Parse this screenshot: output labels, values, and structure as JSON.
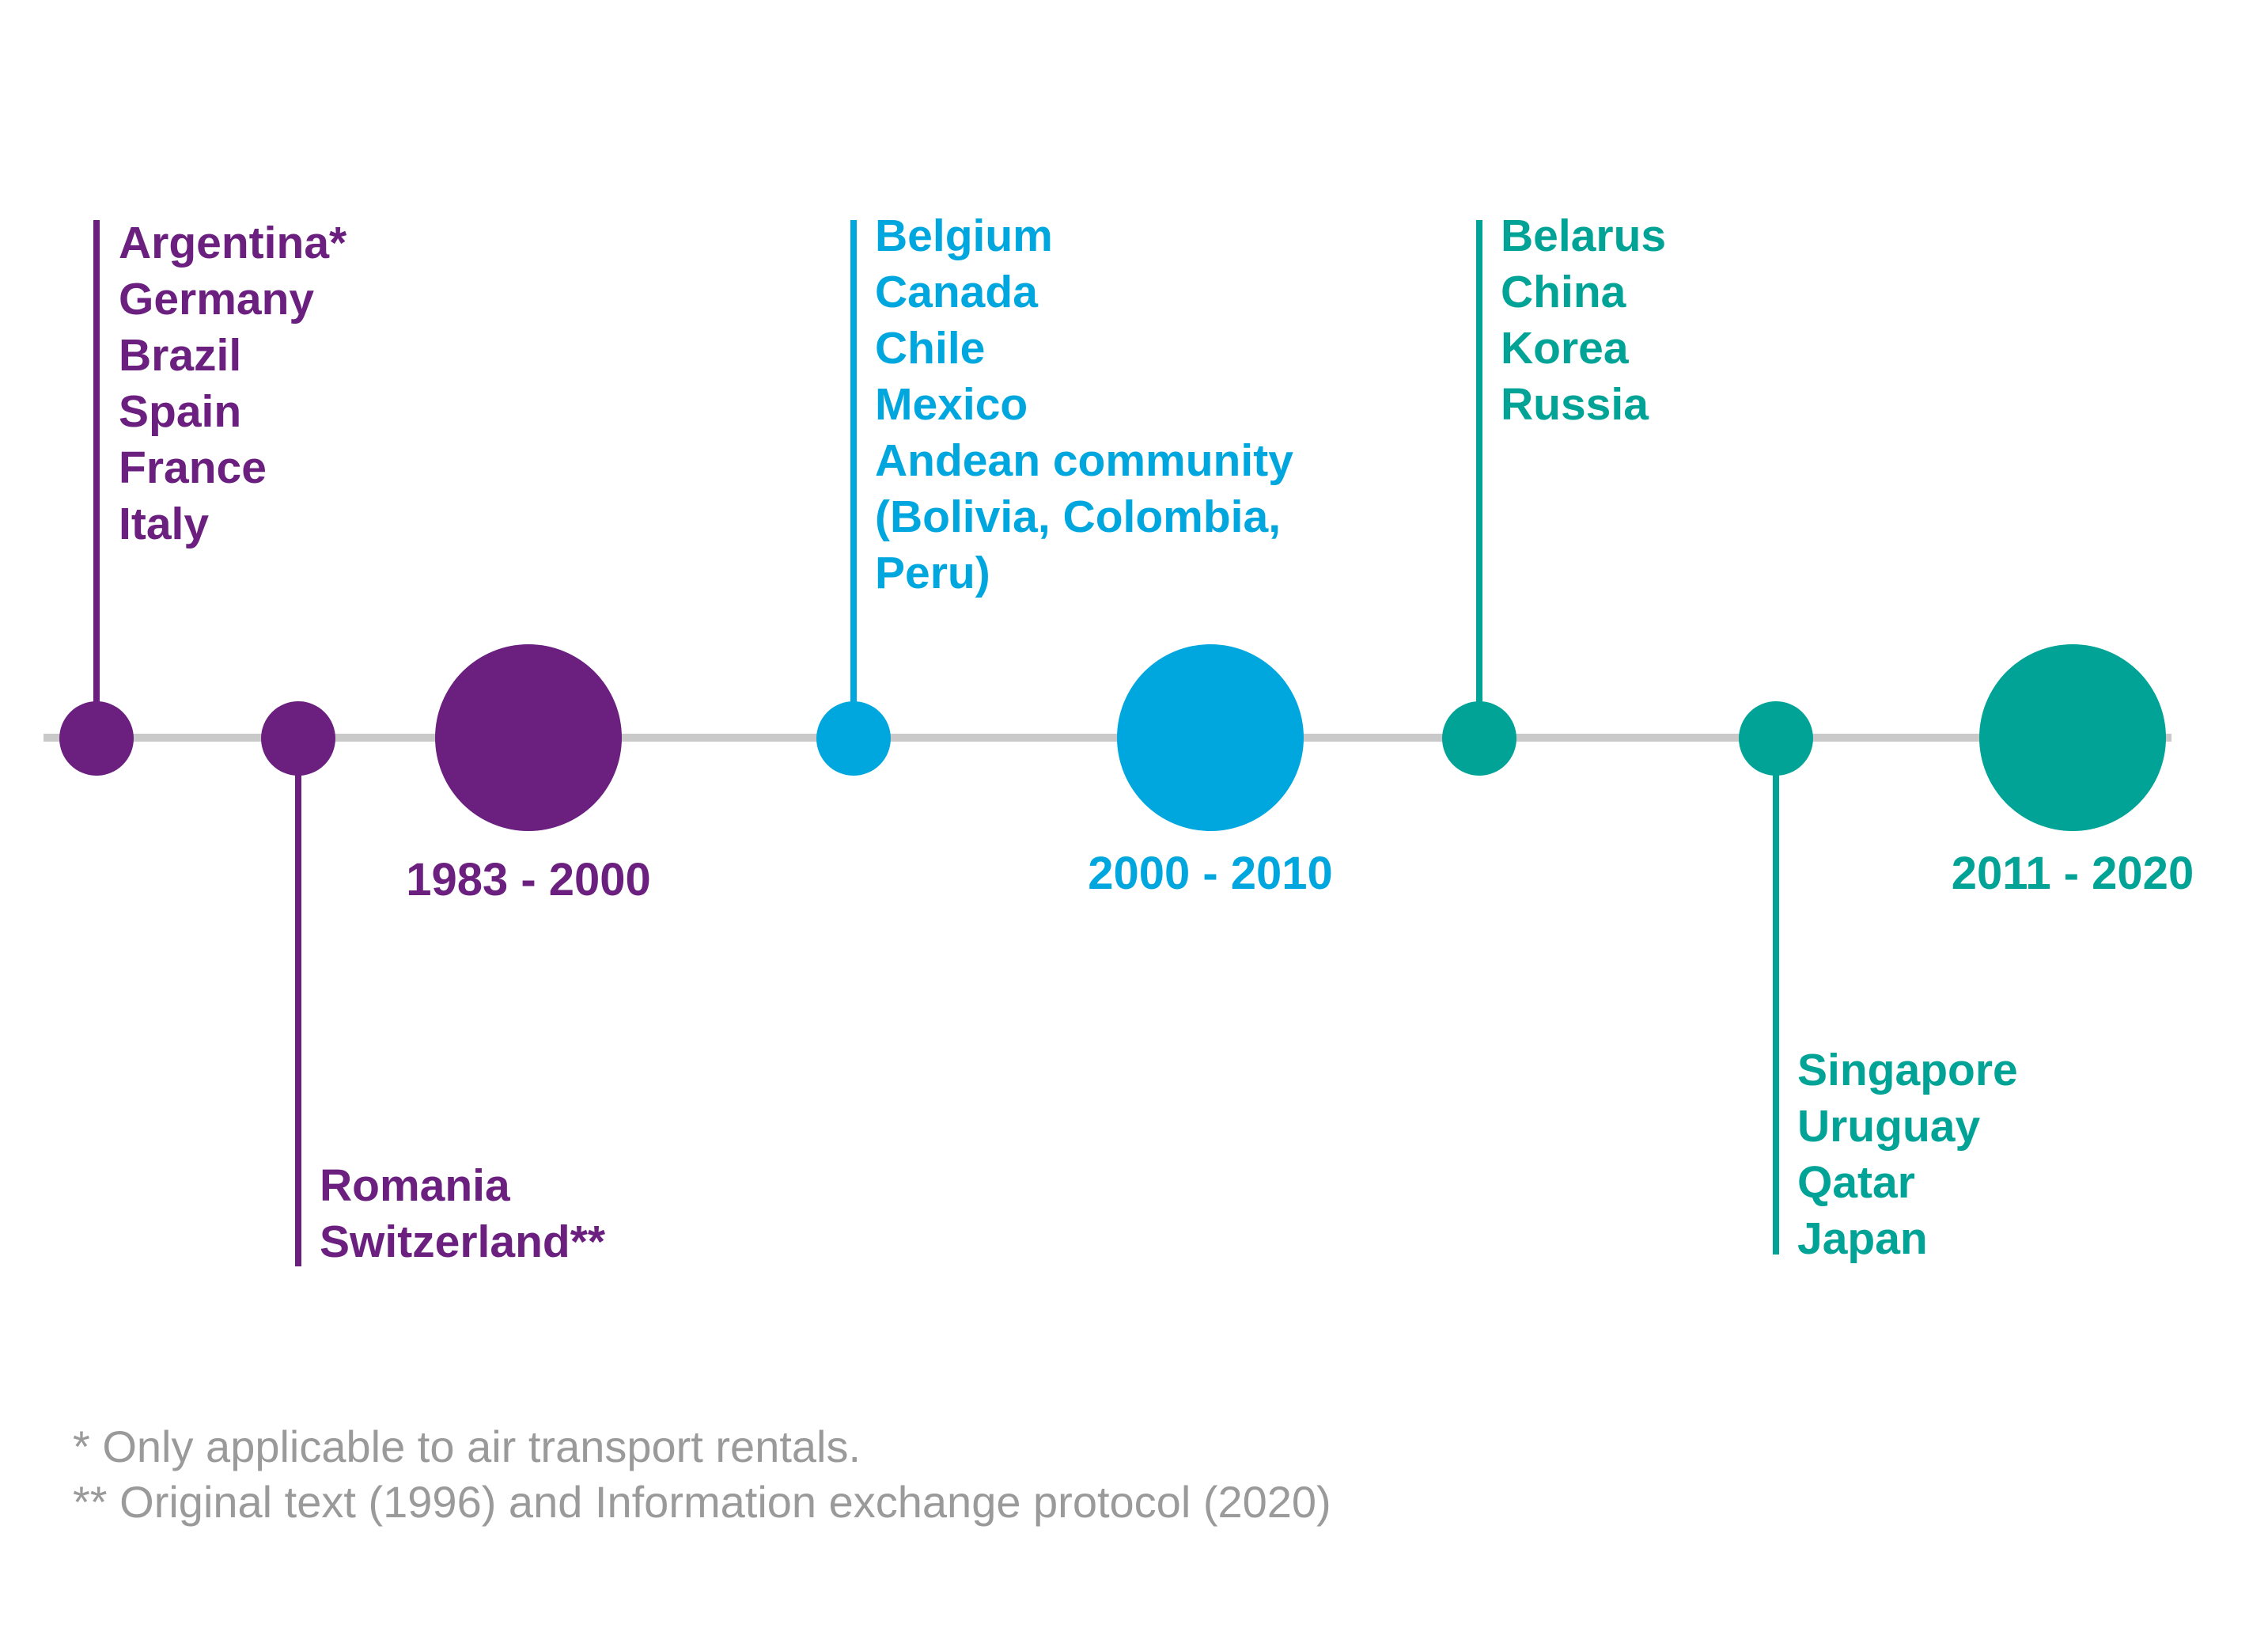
{
  "colors": {
    "purple": "#6b2080",
    "blue": "#00a7df",
    "teal": "#00a396",
    "axis": "#c9c9c9",
    "footnote": "#9a9a9a"
  },
  "periods": [
    {
      "label": "1983 - 2000",
      "color": "#6b2080"
    },
    {
      "label": "2000 - 2010",
      "color": "#00a7df"
    },
    {
      "label": "2011 - 2020",
      "color": "#00a396"
    }
  ],
  "groups": [
    {
      "color": "#6b2080",
      "position": "above",
      "countries": [
        "Argentina*",
        "Germany",
        "Brazil",
        "Spain",
        "France",
        "Italy"
      ]
    },
    {
      "color": "#6b2080",
      "position": "below",
      "countries": [
        "Romania",
        "Switzerland**"
      ]
    },
    {
      "color": "#00a7df",
      "position": "above",
      "countries": [
        "Belgium",
        "Canada",
        "Chile",
        "Mexico",
        "Andean community",
        "(Bolivia, Colombia,",
        "Peru)"
      ]
    },
    {
      "color": "#00a396",
      "position": "above",
      "countries": [
        "Belarus",
        "China",
        "Korea",
        "Russia"
      ]
    },
    {
      "color": "#00a396",
      "position": "below",
      "countries": [
        "Singapore",
        "Uruguay",
        "Qatar",
        "Japan"
      ]
    }
  ],
  "footnotes": [
    "* Only applicable to air transport rentals.",
    "** Original text (1996) and Information exchange protocol (2020)"
  ]
}
